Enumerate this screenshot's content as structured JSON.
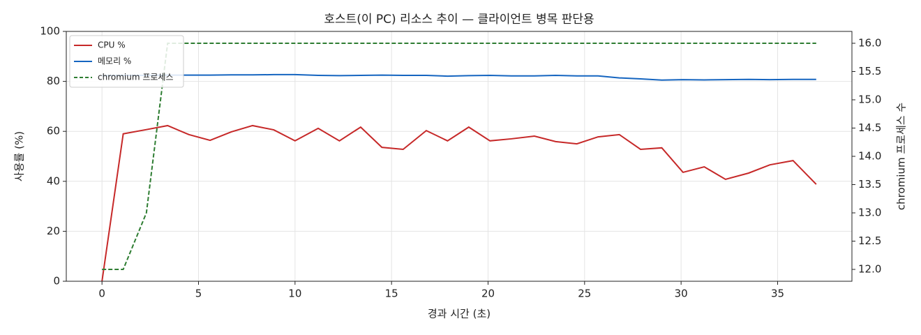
{
  "chart_data": {
    "type": "line",
    "title": "호스트(이 PC) 리소스 추이 — 클라이언트 병목 판단용",
    "x_label": "경과 시간 (초)",
    "y_label": "사용률 (%)",
    "y2_label": "chromium 프로세스 수",
    "x": [
      0,
      1.1,
      2.3,
      3.4,
      4.5,
      5.6,
      6.7,
      7.8,
      8.9,
      10.0,
      11.2,
      12.3,
      13.4,
      14.5,
      15.6,
      16.8,
      17.9,
      19.0,
      20.1,
      21.2,
      22.4,
      23.5,
      24.6,
      25.7,
      26.8,
      27.9,
      29.0,
      30.1,
      31.2,
      32.3,
      33.5,
      34.6,
      35.8,
      37.0
    ],
    "series": [
      {
        "name": "CPU %",
        "color": "#c62828",
        "dash": false,
        "values": [
          0,
          59,
          60.7,
          62.3,
          58.7,
          56.4,
          59.8,
          62.3,
          60.6,
          56.2,
          61.2,
          56.2,
          61.7,
          53.6,
          52.8,
          60.3,
          56.2,
          61.7,
          56.2,
          57,
          58.1,
          55.9,
          55,
          57.8,
          58.7,
          52.8,
          53.4,
          43.6,
          45.8,
          40.8,
          43.3,
          46.6,
          48.3,
          38.8
        ]
      },
      {
        "name": "메모리 %",
        "color": "#1565c0",
        "dash": false,
        "values": [
          82.3,
          82.4,
          82.4,
          82.5,
          82.5,
          82.5,
          82.6,
          82.6,
          82.7,
          82.7,
          82.4,
          82.3,
          82.4,
          82.5,
          82.4,
          82.4,
          82.1,
          82.3,
          82.4,
          82.2,
          82.2,
          82.4,
          82.2,
          82.2,
          81.4,
          81.0,
          80.5,
          80.7,
          80.6,
          80.7,
          80.8,
          80.7,
          80.8,
          80.8
        ]
      },
      {
        "name": "chromium 프로세스",
        "color": "#2e7d32",
        "dash": true,
        "axis": "y2",
        "values": [
          12,
          12,
          13,
          16,
          16,
          16,
          16,
          16,
          16,
          16,
          16,
          16,
          16,
          16,
          16,
          16,
          16,
          16,
          16,
          16,
          16,
          16,
          16,
          16,
          16,
          16,
          16,
          16,
          16,
          16,
          16,
          16,
          16,
          16
        ]
      }
    ],
    "xlim": [
      -1.85,
      38.85
    ],
    "xticks": [
      0,
      5,
      10,
      15,
      20,
      25,
      30,
      35
    ],
    "ylim": [
      0,
      100
    ],
    "yticks": [
      0,
      20,
      40,
      60,
      80,
      100
    ],
    "y2lim": [
      11.79,
      16.21
    ],
    "y2ticks": [
      {
        "value": 12,
        "label": "12.0"
      },
      12.5,
      {
        "value": 13,
        "label": "13.0"
      },
      13.5,
      {
        "value": 14,
        "label": "14.0"
      },
      14.5,
      {
        "value": 15,
        "label": "15.0"
      },
      15.5,
      {
        "value": 16,
        "label": "16.0"
      }
    ],
    "grid": true,
    "legend": "upper-left"
  }
}
